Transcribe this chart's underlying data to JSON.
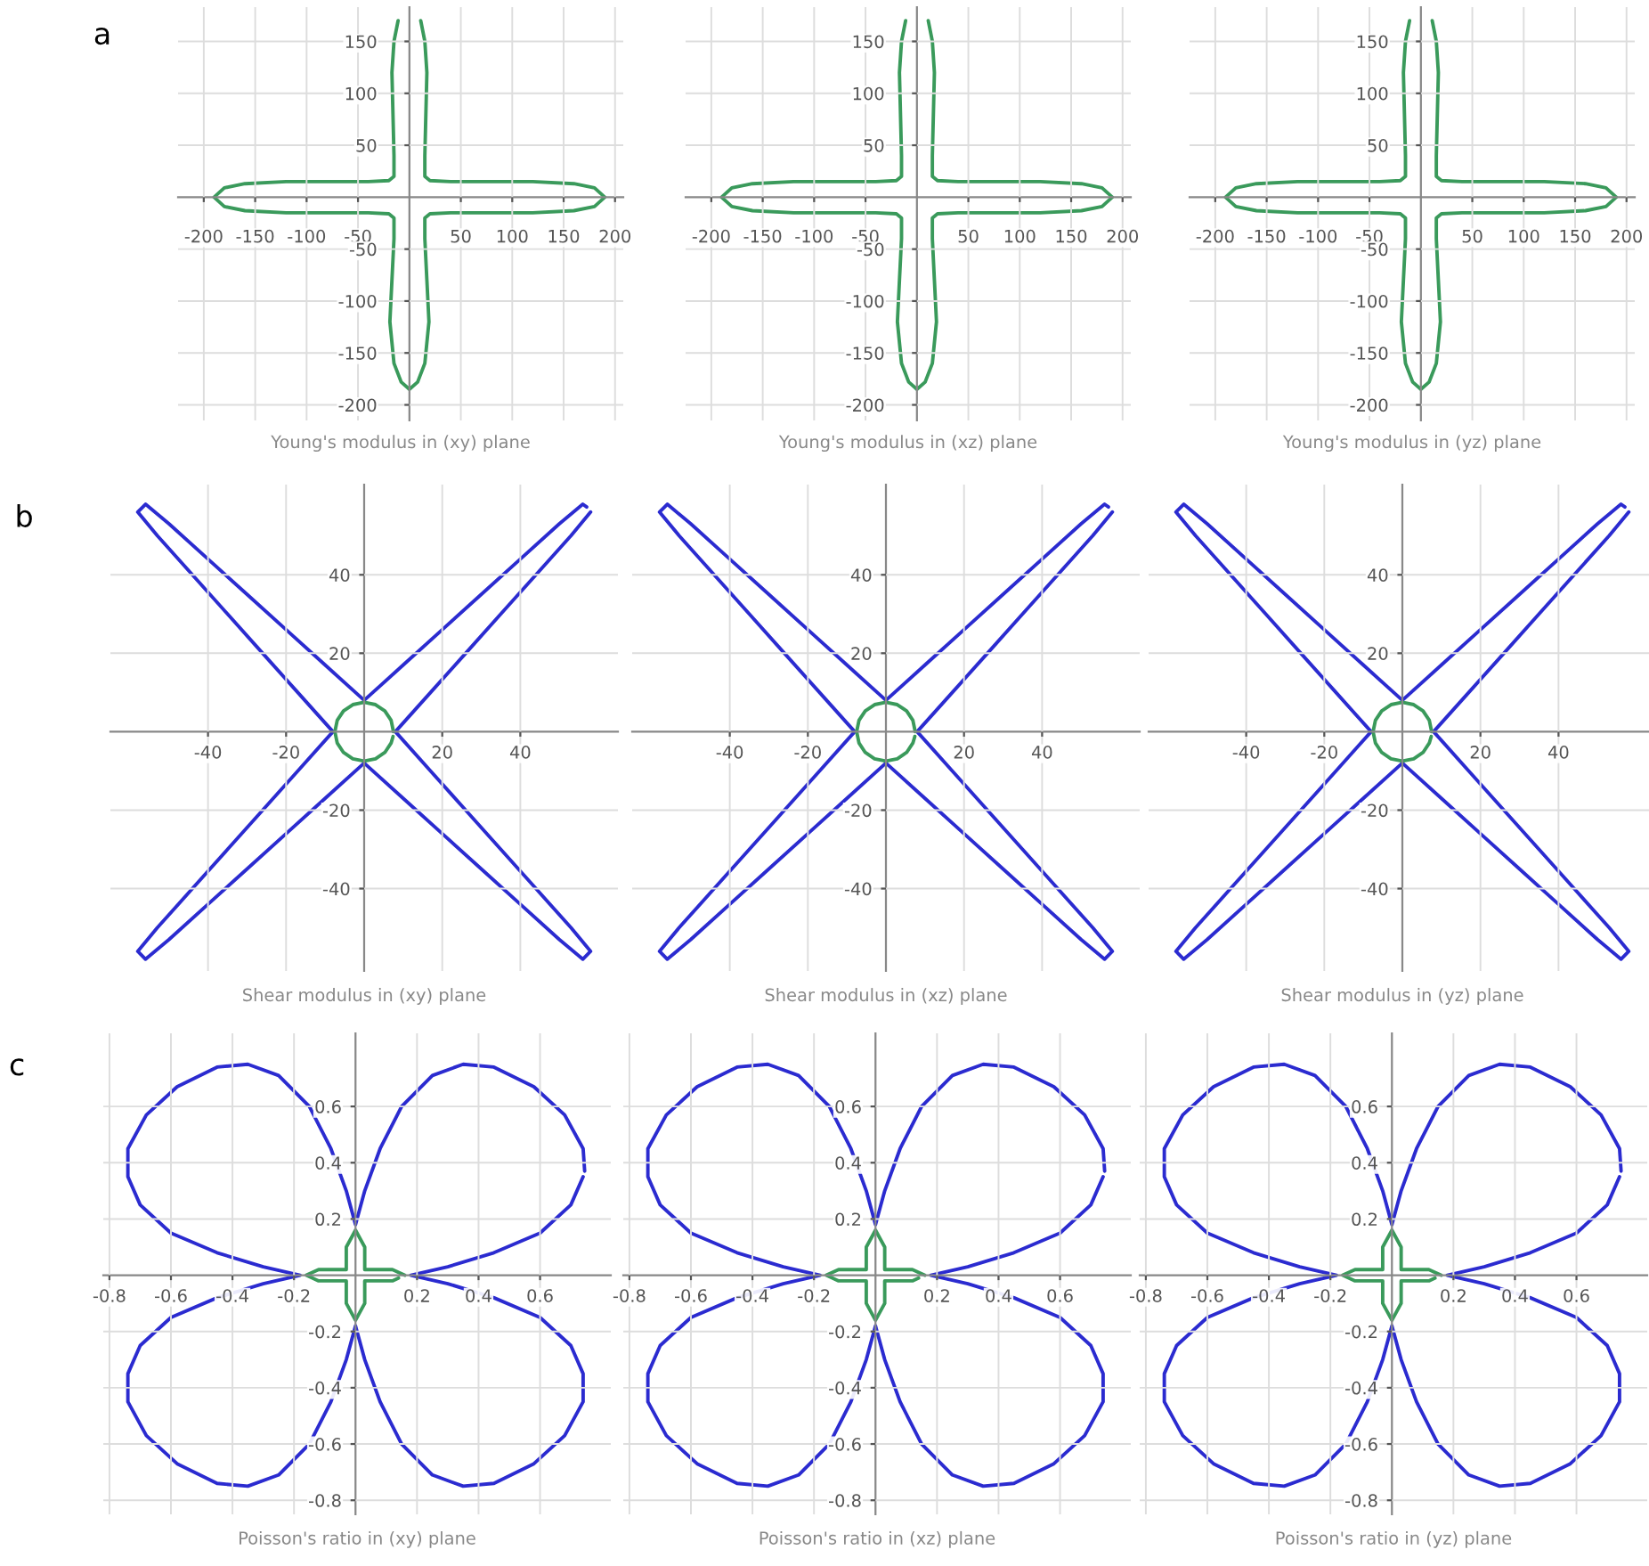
{
  "chart_data": [
    {
      "type": "line",
      "xlabel": "Young's modulus in (xy) plane",
      "annotations": [
        "a"
      ],
      "xlim": [
        -225,
        208
      ],
      "ylim": [
        -215,
        183
      ],
      "xticks": [
        -200,
        -150,
        -100,
        -50,
        50,
        100,
        150,
        200
      ],
      "yticks": [
        -200,
        -150,
        -100,
        -50,
        50,
        100,
        150
      ],
      "grid": true,
      "series": [
        {
          "color": "#3a9a5b",
          "x": [
            190,
            180,
            160,
            120,
            80,
            40,
            20,
            15,
            15,
            16,
            17,
            15,
            11,
            null,
            null,
            null,
            -11,
            -15,
            -17,
            -16,
            -15,
            -15,
            -20,
            -40,
            -80,
            -120,
            -160,
            -180,
            -190,
            -180,
            -160,
            -120,
            -80,
            -40,
            -20,
            -15,
            -15,
            -17,
            -19,
            -15,
            -8,
            0,
            8,
            15,
            19,
            17,
            15,
            15,
            20,
            40,
            80,
            120,
            160,
            180,
            190
          ],
          "values": [
            0,
            9,
            13,
            15,
            15,
            15,
            16,
            20,
            40,
            80,
            120,
            150,
            170,
            null,
            null,
            null,
            170,
            150,
            120,
            80,
            40,
            20,
            16,
            15,
            15,
            15,
            13,
            9,
            0,
            -9,
            -13,
            -15,
            -15,
            -15,
            -16,
            -20,
            -40,
            -80,
            -120,
            -160,
            -178,
            -185,
            -178,
            -160,
            -120,
            -80,
            -40,
            -20,
            -16,
            -15,
            -15,
            -15,
            -13,
            -9,
            0
          ]
        }
      ]
    },
    {
      "type": "line",
      "xlabel": "Young's modulus in (xz) plane",
      "xlim": [
        -225,
        208
      ],
      "ylim": [
        -215,
        183
      ],
      "xticks": [
        -200,
        -150,
        -100,
        -50,
        50,
        100,
        150,
        200
      ],
      "yticks": [
        -200,
        -150,
        -100,
        -50,
        50,
        100,
        150
      ],
      "grid": true,
      "series": [
        {
          "color": "#3a9a5b",
          "x": [
            190,
            180,
            160,
            120,
            80,
            40,
            20,
            15,
            15,
            16,
            17,
            15,
            11,
            null,
            null,
            null,
            -11,
            -15,
            -17,
            -16,
            -15,
            -15,
            -20,
            -40,
            -80,
            -120,
            -160,
            -180,
            -190,
            -180,
            -160,
            -120,
            -80,
            -40,
            -20,
            -15,
            -15,
            -17,
            -19,
            -15,
            -8,
            0,
            8,
            15,
            19,
            17,
            15,
            15,
            20,
            40,
            80,
            120,
            160,
            180,
            190
          ],
          "values": [
            0,
            9,
            13,
            15,
            15,
            15,
            16,
            20,
            40,
            80,
            120,
            150,
            170,
            null,
            null,
            null,
            170,
            150,
            120,
            80,
            40,
            20,
            16,
            15,
            15,
            15,
            13,
            9,
            0,
            -9,
            -13,
            -15,
            -15,
            -15,
            -16,
            -20,
            -40,
            -80,
            -120,
            -160,
            -178,
            -185,
            -178,
            -160,
            -120,
            -80,
            -40,
            -20,
            -16,
            -15,
            -15,
            -15,
            -13,
            -9,
            0
          ]
        }
      ]
    },
    {
      "type": "line",
      "xlabel": "Young's modulus in (yz) plane",
      "xlim": [
        -225,
        208
      ],
      "ylim": [
        -215,
        183
      ],
      "xticks": [
        -200,
        -150,
        -100,
        -50,
        50,
        100,
        150,
        200
      ],
      "yticks": [
        -200,
        -150,
        -100,
        -50,
        50,
        100,
        150
      ],
      "grid": true,
      "series": [
        {
          "color": "#3a9a5b",
          "x": [
            190,
            180,
            160,
            120,
            80,
            40,
            20,
            15,
            15,
            16,
            17,
            15,
            11,
            null,
            null,
            null,
            -11,
            -15,
            -17,
            -16,
            -15,
            -15,
            -20,
            -40,
            -80,
            -120,
            -160,
            -180,
            -190,
            -180,
            -160,
            -120,
            -80,
            -40,
            -20,
            -15,
            -15,
            -17,
            -19,
            -15,
            -8,
            0,
            8,
            15,
            19,
            17,
            15,
            15,
            20,
            40,
            80,
            120,
            160,
            180,
            190
          ],
          "values": [
            0,
            9,
            13,
            15,
            15,
            15,
            16,
            20,
            40,
            80,
            120,
            150,
            170,
            null,
            null,
            null,
            170,
            150,
            120,
            80,
            40,
            20,
            16,
            15,
            15,
            15,
            13,
            9,
            0,
            -9,
            -13,
            -15,
            -15,
            -15,
            -16,
            -20,
            -40,
            -80,
            -120,
            -160,
            -178,
            -185,
            -178,
            -160,
            -120,
            -80,
            -40,
            -20,
            -16,
            -15,
            -15,
            -15,
            -13,
            -9,
            0
          ]
        }
      ]
    },
    {
      "type": "line",
      "xlabel": "Shear modulus in (xy) plane",
      "annotations": [
        "b"
      ],
      "xlim": [
        -65,
        65
      ],
      "ylim": [
        -61,
        63
      ],
      "xticks": [
        -40,
        -20,
        20,
        40
      ],
      "yticks": [
        -40,
        -20,
        20,
        40
      ],
      "grid": true,
      "series": [
        {
          "color": "#2b2bd0",
          "x": [
            58,
            53,
            44,
            35,
            26,
            17,
            8,
            17,
            26,
            35,
            44,
            53,
            58,
            56,
            50,
            40,
            30,
            20,
            10,
            0,
            -10,
            -20,
            -30,
            -40,
            -50,
            -56,
            -58,
            -53,
            -44,
            -35,
            -26,
            -17,
            -8,
            -17,
            -26,
            -35,
            -44,
            -53,
            -58,
            -56,
            -50,
            -40,
            -30,
            -20,
            -10,
            0,
            10,
            20,
            30,
            40,
            50,
            56,
            57
          ],
          "values": [
            56,
            50,
            40,
            30,
            20,
            10,
            0,
            -10,
            -20,
            -30,
            -40,
            -50,
            -56,
            -58,
            -53,
            -44,
            -35,
            -26,
            -17,
            -8,
            -17,
            -26,
            -35,
            -44,
            -53,
            -58,
            -56,
            -50,
            -40,
            -30,
            -20,
            -10,
            0,
            10,
            20,
            30,
            40,
            50,
            56,
            58,
            53,
            44,
            35,
            26,
            17,
            8,
            17,
            26,
            35,
            44,
            53,
            58,
            57.3
          ]
        },
        {
          "color": "#3a9a5b",
          "x": [
            7.5,
            6.9,
            5.3,
            2.9,
            0,
            -2.9,
            -5.3,
            -6.9,
            -7.5,
            -6.9,
            -5.3,
            -2.9,
            0,
            2.9,
            5.3,
            6.9,
            7.4
          ],
          "values": [
            0,
            2.9,
            5.3,
            6.9,
            7.5,
            6.9,
            5.3,
            2.9,
            0,
            -2.9,
            -5.3,
            -6.9,
            -7.5,
            -6.9,
            -5.3,
            -2.9,
            -1.2
          ]
        }
      ]
    },
    {
      "type": "line",
      "xlabel": "Shear modulus in (xz) plane",
      "xlim": [
        -65,
        65
      ],
      "ylim": [
        -61,
        63
      ],
      "xticks": [
        -40,
        -20,
        20,
        40
      ],
      "yticks": [
        -40,
        -20,
        20,
        40
      ],
      "grid": true,
      "series": [
        {
          "color": "#2b2bd0",
          "x": [
            58,
            53,
            44,
            35,
            26,
            17,
            8,
            17,
            26,
            35,
            44,
            53,
            58,
            56,
            50,
            40,
            30,
            20,
            10,
            0,
            -10,
            -20,
            -30,
            -40,
            -50,
            -56,
            -58,
            -53,
            -44,
            -35,
            -26,
            -17,
            -8,
            -17,
            -26,
            -35,
            -44,
            -53,
            -58,
            -56,
            -50,
            -40,
            -30,
            -20,
            -10,
            0,
            10,
            20,
            30,
            40,
            50,
            56,
            57
          ],
          "values": [
            56,
            50,
            40,
            30,
            20,
            10,
            0,
            -10,
            -20,
            -30,
            -40,
            -50,
            -56,
            -58,
            -53,
            -44,
            -35,
            -26,
            -17,
            -8,
            -17,
            -26,
            -35,
            -44,
            -53,
            -58,
            -56,
            -50,
            -40,
            -30,
            -20,
            -10,
            0,
            10,
            20,
            30,
            40,
            50,
            56,
            58,
            53,
            44,
            35,
            26,
            17,
            8,
            17,
            26,
            35,
            44,
            53,
            58,
            57.3
          ]
        },
        {
          "color": "#3a9a5b",
          "x": [
            7.5,
            6.9,
            5.3,
            2.9,
            0,
            -2.9,
            -5.3,
            -6.9,
            -7.5,
            -6.9,
            -5.3,
            -2.9,
            0,
            2.9,
            5.3,
            6.9,
            7.4
          ],
          "values": [
            0,
            2.9,
            5.3,
            6.9,
            7.5,
            6.9,
            5.3,
            2.9,
            0,
            -2.9,
            -5.3,
            -6.9,
            -7.5,
            -6.9,
            -5.3,
            -2.9,
            -1.2
          ]
        }
      ]
    },
    {
      "type": "line",
      "xlabel": "Shear modulus in (yz) plane",
      "xlim": [
        -65,
        65
      ],
      "ylim": [
        -61,
        63
      ],
      "xticks": [
        -40,
        -20,
        20,
        40
      ],
      "yticks": [
        -40,
        -20,
        20,
        40
      ],
      "grid": true,
      "series": [
        {
          "color": "#2b2bd0",
          "x": [
            58,
            53,
            44,
            35,
            26,
            17,
            8,
            17,
            26,
            35,
            44,
            53,
            58,
            56,
            50,
            40,
            30,
            20,
            10,
            0,
            -10,
            -20,
            -30,
            -40,
            -50,
            -56,
            -58,
            -53,
            -44,
            -35,
            -26,
            -17,
            -8,
            -17,
            -26,
            -35,
            -44,
            -53,
            -58,
            -56,
            -50,
            -40,
            -30,
            -20,
            -10,
            0,
            10,
            20,
            30,
            40,
            50,
            56,
            57
          ],
          "values": [
            56,
            50,
            40,
            30,
            20,
            10,
            0,
            -10,
            -20,
            -30,
            -40,
            -50,
            -56,
            -58,
            -53,
            -44,
            -35,
            -26,
            -17,
            -8,
            -17,
            -26,
            -35,
            -44,
            -53,
            -58,
            -56,
            -50,
            -40,
            -30,
            -20,
            -10,
            0,
            10,
            20,
            30,
            40,
            50,
            56,
            58,
            53,
            44,
            35,
            26,
            17,
            8,
            17,
            26,
            35,
            44,
            53,
            58,
            57.3
          ]
        },
        {
          "color": "#3a9a5b",
          "x": [
            7.5,
            6.9,
            5.3,
            2.9,
            0,
            -2.9,
            -5.3,
            -6.9,
            -7.5,
            -6.9,
            -5.3,
            -2.9,
            0,
            2.9,
            5.3,
            6.9,
            7.4
          ],
          "values": [
            0,
            2.9,
            5.3,
            6.9,
            7.5,
            6.9,
            5.3,
            2.9,
            0,
            -2.9,
            -5.3,
            -6.9,
            -7.5,
            -6.9,
            -5.3,
            -2.9,
            -1.2
          ]
        }
      ]
    },
    {
      "type": "line",
      "xlabel": "Poisson's ratio in (xy) plane",
      "annotations": [
        "c"
      ],
      "xlim": [
        -0.82,
        0.83
      ],
      "ylim": [
        -0.85,
        0.86
      ],
      "xticks": [
        -0.8,
        -0.6,
        -0.4,
        -0.2,
        0.2,
        0.4,
        0.6
      ],
      "yticks": [
        -0.8,
        -0.6,
        -0.4,
        -0.2,
        0.2,
        0.4,
        0.6
      ],
      "grid": true,
      "series": [
        {
          "color": "#2b2bd0",
          "x": [
            0.74,
            0.7,
            0.6,
            0.45,
            0.3,
            0.18,
            0.3,
            0.45,
            0.6,
            0.7,
            0.74,
            0.74,
            0.68,
            0.58,
            0.45,
            0.35,
            0.25,
            0.15,
            0.08,
            0.03,
            0,
            -0.03,
            -0.08,
            -0.15,
            -0.25,
            -0.35,
            -0.45,
            -0.58,
            -0.68,
            -0.74,
            -0.74,
            -0.7,
            -0.6,
            -0.45,
            -0.3,
            -0.18,
            -0.3,
            -0.45,
            -0.6,
            -0.7,
            -0.74,
            -0.74,
            -0.68,
            -0.58,
            -0.45,
            -0.35,
            -0.25,
            -0.15,
            -0.08,
            -0.03,
            0,
            0.03,
            0.08,
            0.15,
            0.25,
            0.35,
            0.45,
            0.58,
            0.68,
            0.74,
            0.745
          ],
          "values": [
            0.35,
            0.25,
            0.15,
            0.08,
            0.03,
            0,
            -0.03,
            -0.08,
            -0.15,
            -0.25,
            -0.35,
            -0.45,
            -0.57,
            -0.67,
            -0.74,
            -0.75,
            -0.71,
            -0.6,
            -0.45,
            -0.3,
            -0.18,
            -0.3,
            -0.45,
            -0.6,
            -0.71,
            -0.75,
            -0.74,
            -0.67,
            -0.57,
            -0.45,
            -0.35,
            -0.25,
            -0.15,
            -0.08,
            -0.03,
            0,
            0.03,
            0.08,
            0.15,
            0.25,
            0.35,
            0.45,
            0.57,
            0.67,
            0.74,
            0.75,
            0.71,
            0.6,
            0.45,
            0.3,
            0.18,
            0.3,
            0.45,
            0.6,
            0.71,
            0.75,
            0.74,
            0.67,
            0.57,
            0.45,
            0.37
          ]
        },
        {
          "color": "#3a9a5b",
          "x": [
            0.16,
            0.12,
            0.03,
            0.03,
            0,
            -0.03,
            -0.03,
            -0.12,
            -0.16,
            -0.12,
            -0.03,
            -0.03,
            0,
            0.03,
            0.03,
            0.12,
            0.14
          ],
          "values": [
            0,
            0.02,
            0.02,
            0.1,
            0.16,
            0.1,
            0.02,
            0.02,
            0,
            -0.02,
            -0.02,
            -0.1,
            -0.16,
            -0.1,
            -0.02,
            -0.02,
            -0.01
          ]
        }
      ]
    },
    {
      "type": "line",
      "xlabel": "Poisson's ratio in (xz) plane",
      "xlim": [
        -0.82,
        0.83
      ],
      "ylim": [
        -0.85,
        0.86
      ],
      "xticks": [
        -0.8,
        -0.6,
        -0.4,
        -0.2,
        0.2,
        0.4,
        0.6
      ],
      "yticks": [
        -0.8,
        -0.6,
        -0.4,
        -0.2,
        0.2,
        0.4,
        0.6
      ],
      "grid": true,
      "series": [
        {
          "color": "#2b2bd0",
          "x": [
            0.74,
            0.7,
            0.6,
            0.45,
            0.3,
            0.18,
            0.3,
            0.45,
            0.6,
            0.7,
            0.74,
            0.74,
            0.68,
            0.58,
            0.45,
            0.35,
            0.25,
            0.15,
            0.08,
            0.03,
            0,
            -0.03,
            -0.08,
            -0.15,
            -0.25,
            -0.35,
            -0.45,
            -0.58,
            -0.68,
            -0.74,
            -0.74,
            -0.7,
            -0.6,
            -0.45,
            -0.3,
            -0.18,
            -0.3,
            -0.45,
            -0.6,
            -0.7,
            -0.74,
            -0.74,
            -0.68,
            -0.58,
            -0.45,
            -0.35,
            -0.25,
            -0.15,
            -0.08,
            -0.03,
            0,
            0.03,
            0.08,
            0.15,
            0.25,
            0.35,
            0.45,
            0.58,
            0.68,
            0.74,
            0.745
          ],
          "values": [
            0.35,
            0.25,
            0.15,
            0.08,
            0.03,
            0,
            -0.03,
            -0.08,
            -0.15,
            -0.25,
            -0.35,
            -0.45,
            -0.57,
            -0.67,
            -0.74,
            -0.75,
            -0.71,
            -0.6,
            -0.45,
            -0.3,
            -0.18,
            -0.3,
            -0.45,
            -0.6,
            -0.71,
            -0.75,
            -0.74,
            -0.67,
            -0.57,
            -0.45,
            -0.35,
            -0.25,
            -0.15,
            -0.08,
            -0.03,
            0,
            0.03,
            0.08,
            0.15,
            0.25,
            0.35,
            0.45,
            0.57,
            0.67,
            0.74,
            0.75,
            0.71,
            0.6,
            0.45,
            0.3,
            0.18,
            0.3,
            0.45,
            0.6,
            0.71,
            0.75,
            0.74,
            0.67,
            0.57,
            0.45,
            0.37
          ]
        },
        {
          "color": "#3a9a5b",
          "x": [
            0.16,
            0.12,
            0.03,
            0.03,
            0,
            -0.03,
            -0.03,
            -0.12,
            -0.16,
            -0.12,
            -0.03,
            -0.03,
            0,
            0.03,
            0.03,
            0.12,
            0.14
          ],
          "values": [
            0,
            0.02,
            0.02,
            0.1,
            0.16,
            0.1,
            0.02,
            0.02,
            0,
            -0.02,
            -0.02,
            -0.1,
            -0.16,
            -0.1,
            -0.02,
            -0.02,
            -0.01
          ]
        }
      ]
    },
    {
      "type": "line",
      "xlabel": "Poisson's ratio in (yz) plane",
      "xlim": [
        -0.82,
        0.83
      ],
      "ylim": [
        -0.85,
        0.86
      ],
      "xticks": [
        -0.8,
        -0.6,
        -0.4,
        -0.2,
        0.2,
        0.4,
        0.6
      ],
      "yticks": [
        -0.8,
        -0.6,
        -0.4,
        -0.2,
        0.2,
        0.4,
        0.6
      ],
      "grid": true,
      "series": [
        {
          "color": "#2b2bd0",
          "x": [
            0.74,
            0.7,
            0.6,
            0.45,
            0.3,
            0.18,
            0.3,
            0.45,
            0.6,
            0.7,
            0.74,
            0.74,
            0.68,
            0.58,
            0.45,
            0.35,
            0.25,
            0.15,
            0.08,
            0.03,
            0,
            -0.03,
            -0.08,
            -0.15,
            -0.25,
            -0.35,
            -0.45,
            -0.58,
            -0.68,
            -0.74,
            -0.74,
            -0.7,
            -0.6,
            -0.45,
            -0.3,
            -0.18,
            -0.3,
            -0.45,
            -0.6,
            -0.7,
            -0.74,
            -0.74,
            -0.68,
            -0.58,
            -0.45,
            -0.35,
            -0.25,
            -0.15,
            -0.08,
            -0.03,
            0,
            0.03,
            0.08,
            0.15,
            0.25,
            0.35,
            0.45,
            0.58,
            0.68,
            0.74,
            0.745
          ],
          "values": [
            0.35,
            0.25,
            0.15,
            0.08,
            0.03,
            0,
            -0.03,
            -0.08,
            -0.15,
            -0.25,
            -0.35,
            -0.45,
            -0.57,
            -0.67,
            -0.74,
            -0.75,
            -0.71,
            -0.6,
            -0.45,
            -0.3,
            -0.18,
            -0.3,
            -0.45,
            -0.6,
            -0.71,
            -0.75,
            -0.74,
            -0.67,
            -0.57,
            -0.45,
            -0.35,
            -0.25,
            -0.15,
            -0.08,
            -0.03,
            0,
            0.03,
            0.08,
            0.15,
            0.25,
            0.35,
            0.45,
            0.57,
            0.67,
            0.74,
            0.75,
            0.71,
            0.6,
            0.45,
            0.3,
            0.18,
            0.3,
            0.45,
            0.6,
            0.71,
            0.75,
            0.74,
            0.67,
            0.57,
            0.45,
            0.37
          ]
        },
        {
          "color": "#3a9a5b",
          "x": [
            0.16,
            0.12,
            0.03,
            0.03,
            0,
            -0.03,
            -0.03,
            -0.12,
            -0.16,
            -0.12,
            -0.03,
            -0.03,
            0,
            0.03,
            0.03,
            0.12,
            0.14
          ],
          "values": [
            0,
            0.02,
            0.02,
            0.1,
            0.16,
            0.1,
            0.02,
            0.02,
            0,
            -0.02,
            -0.02,
            -0.1,
            -0.16,
            -0.1,
            -0.02,
            -0.02,
            -0.01
          ]
        }
      ]
    }
  ]
}
